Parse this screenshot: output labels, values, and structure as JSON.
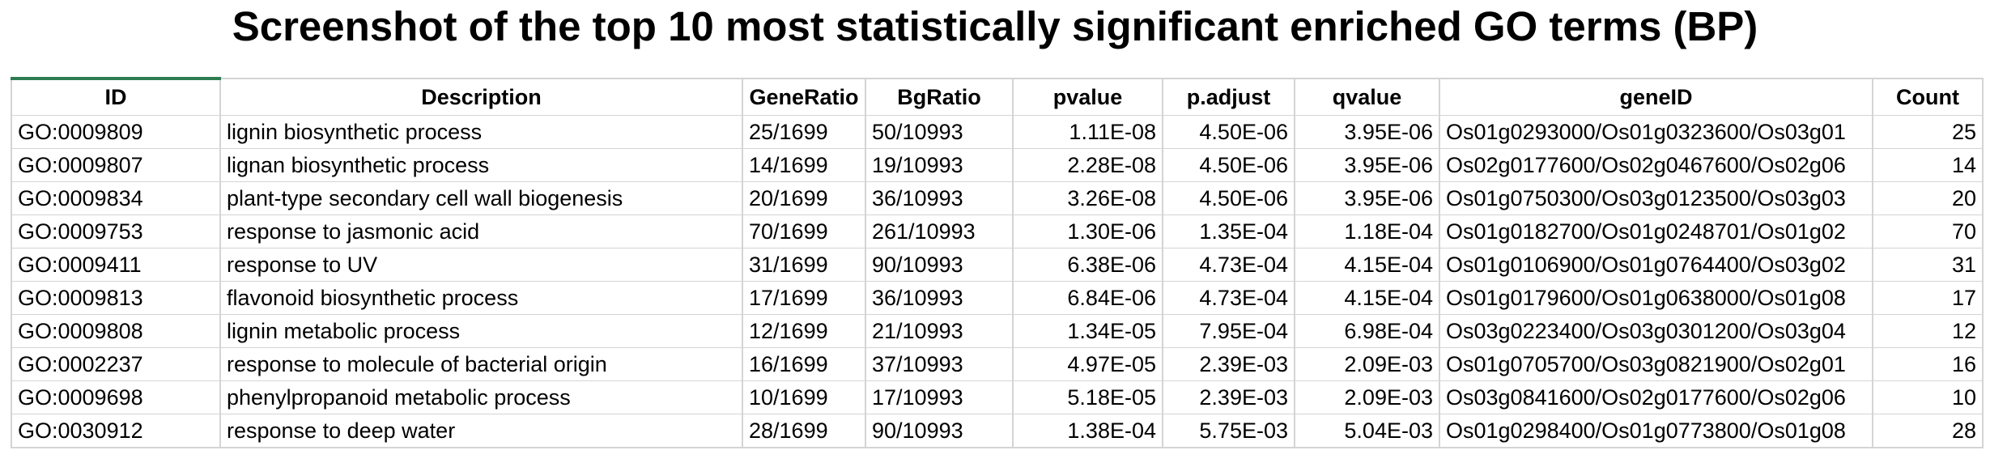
{
  "title": "Screenshot of the top 10 most statistically significant enriched GO terms (BP)",
  "colors": {
    "header_accent": "#2e7d52",
    "gridline": "#d4d4d4",
    "text": "#000000"
  },
  "table": {
    "columns": [
      "ID",
      "Description",
      "GeneRatio",
      "BgRatio",
      "pvalue",
      "p.adjust",
      "qvalue",
      "geneID",
      "Count"
    ],
    "rows": [
      {
        "id": "GO:0009809",
        "description": "lignin biosynthetic process",
        "gene_ratio": "25/1699",
        "bg_ratio": "50/10993",
        "pvalue": "1.11E-08",
        "p_adjust": "4.50E-06",
        "qvalue": "3.95E-06",
        "gene_id": "Os01g0293000/Os01g0323600/Os03g01",
        "count": "25"
      },
      {
        "id": "GO:0009807",
        "description": "lignan biosynthetic process",
        "gene_ratio": "14/1699",
        "bg_ratio": "19/10993",
        "pvalue": "2.28E-08",
        "p_adjust": "4.50E-06",
        "qvalue": "3.95E-06",
        "gene_id": "Os02g0177600/Os02g0467600/Os02g06",
        "count": "14"
      },
      {
        "id": "GO:0009834",
        "description": "plant-type secondary cell wall biogenesis",
        "gene_ratio": "20/1699",
        "bg_ratio": "36/10993",
        "pvalue": "3.26E-08",
        "p_adjust": "4.50E-06",
        "qvalue": "3.95E-06",
        "gene_id": "Os01g0750300/Os03g0123500/Os03g03",
        "count": "20"
      },
      {
        "id": "GO:0009753",
        "description": "response to jasmonic acid",
        "gene_ratio": "70/1699",
        "bg_ratio": "261/10993",
        "pvalue": "1.30E-06",
        "p_adjust": "1.35E-04",
        "qvalue": "1.18E-04",
        "gene_id": "Os01g0182700/Os01g0248701/Os01g02",
        "count": "70"
      },
      {
        "id": "GO:0009411",
        "description": "response to UV",
        "gene_ratio": "31/1699",
        "bg_ratio": "90/10993",
        "pvalue": "6.38E-06",
        "p_adjust": "4.73E-04",
        "qvalue": "4.15E-04",
        "gene_id": "Os01g0106900/Os01g0764400/Os03g02",
        "count": "31"
      },
      {
        "id": "GO:0009813",
        "description": "flavonoid biosynthetic process",
        "gene_ratio": "17/1699",
        "bg_ratio": "36/10993",
        "pvalue": "6.84E-06",
        "p_adjust": "4.73E-04",
        "qvalue": "4.15E-04",
        "gene_id": "Os01g0179600/Os01g0638000/Os01g08",
        "count": "17"
      },
      {
        "id": "GO:0009808",
        "description": "lignin metabolic process",
        "gene_ratio": "12/1699",
        "bg_ratio": "21/10993",
        "pvalue": "1.34E-05",
        "p_adjust": "7.95E-04",
        "qvalue": "6.98E-04",
        "gene_id": "Os03g0223400/Os03g0301200/Os03g04",
        "count": "12"
      },
      {
        "id": "GO:0002237",
        "description": "response to molecule of bacterial origin",
        "gene_ratio": "16/1699",
        "bg_ratio": "37/10993",
        "pvalue": "4.97E-05",
        "p_adjust": "2.39E-03",
        "qvalue": "2.09E-03",
        "gene_id": "Os01g0705700/Os03g0821900/Os02g01",
        "count": "16"
      },
      {
        "id": "GO:0009698",
        "description": "phenylpropanoid metabolic process",
        "gene_ratio": "10/1699",
        "bg_ratio": "17/10993",
        "pvalue": "5.18E-05",
        "p_adjust": "2.39E-03",
        "qvalue": "2.09E-03",
        "gene_id": "Os03g0841600/Os02g0177600/Os02g06",
        "count": "10"
      },
      {
        "id": "GO:0030912",
        "description": "response to deep water",
        "gene_ratio": "28/1699",
        "bg_ratio": "90/10993",
        "pvalue": "1.38E-04",
        "p_adjust": "5.75E-03",
        "qvalue": "5.04E-03",
        "gene_id": "Os01g0298400/Os01g0773800/Os01g08",
        "count": "28"
      }
    ]
  }
}
